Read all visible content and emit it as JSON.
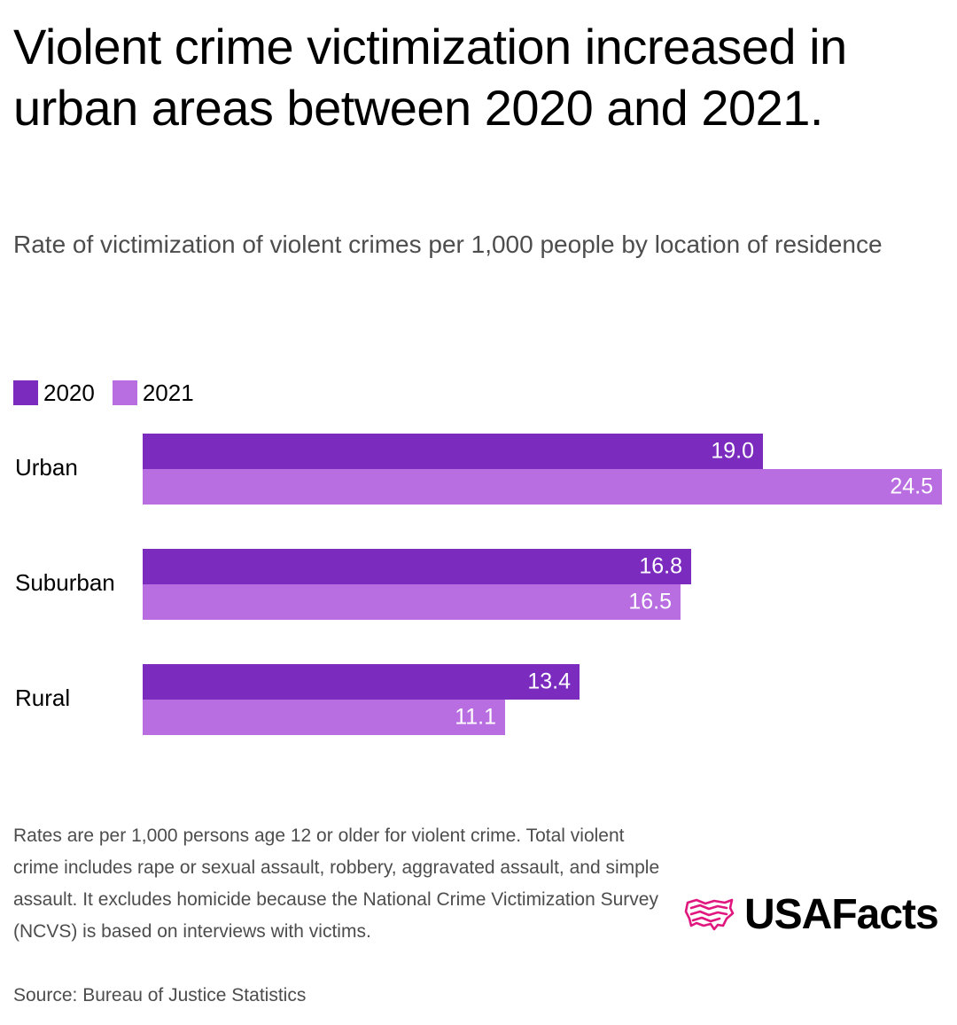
{
  "header": {
    "title": "Violent crime victimization increased in urban areas between 2020 and 2021.",
    "subtitle": "Rate of victimization of violent crimes per 1,000 people by location of residence"
  },
  "legend": {
    "items": [
      {
        "label": "2020",
        "color": "#7b2cbf"
      },
      {
        "label": "2021",
        "color": "#b86ee0"
      }
    ]
  },
  "chart_data": {
    "type": "bar",
    "orientation": "horizontal",
    "title": "Violent crime victimization increased in urban areas between 2020 and 2021.",
    "subtitle": "Rate of victimization of violent crimes per 1,000 people by location of residence",
    "categories": [
      "Urban",
      "Suburban",
      "Rural"
    ],
    "series": [
      {
        "name": "2020",
        "values": [
          19.0,
          16.8,
          13.4
        ],
        "labels": [
          "19.0",
          "16.8",
          "13.4"
        ],
        "color": "#7b2cbf"
      },
      {
        "name": "2021",
        "values": [
          24.5,
          16.5,
          11.1
        ],
        "labels": [
          "24.5",
          "16.5",
          "11.1"
        ],
        "color": "#b86ee0"
      }
    ],
    "xlabel": "",
    "ylabel": "",
    "xlim": [
      0,
      24.5
    ],
    "grid": false,
    "legend_position": "top-left"
  },
  "footer": {
    "note": "Rates are per 1,000 persons age 12 or older for violent crime. Total violent crime includes rape or sexual assault, robbery, aggravated assault, and simple assault. It excludes homicide because the National Crime Victimization Survey (NCVS) is based on interviews with victims.",
    "source": "Source: Bureau of Justice Statistics",
    "logo_text": "USAFacts",
    "logo_icon": "usa-map-flag-icon",
    "logo_color": "#e0177f"
  }
}
